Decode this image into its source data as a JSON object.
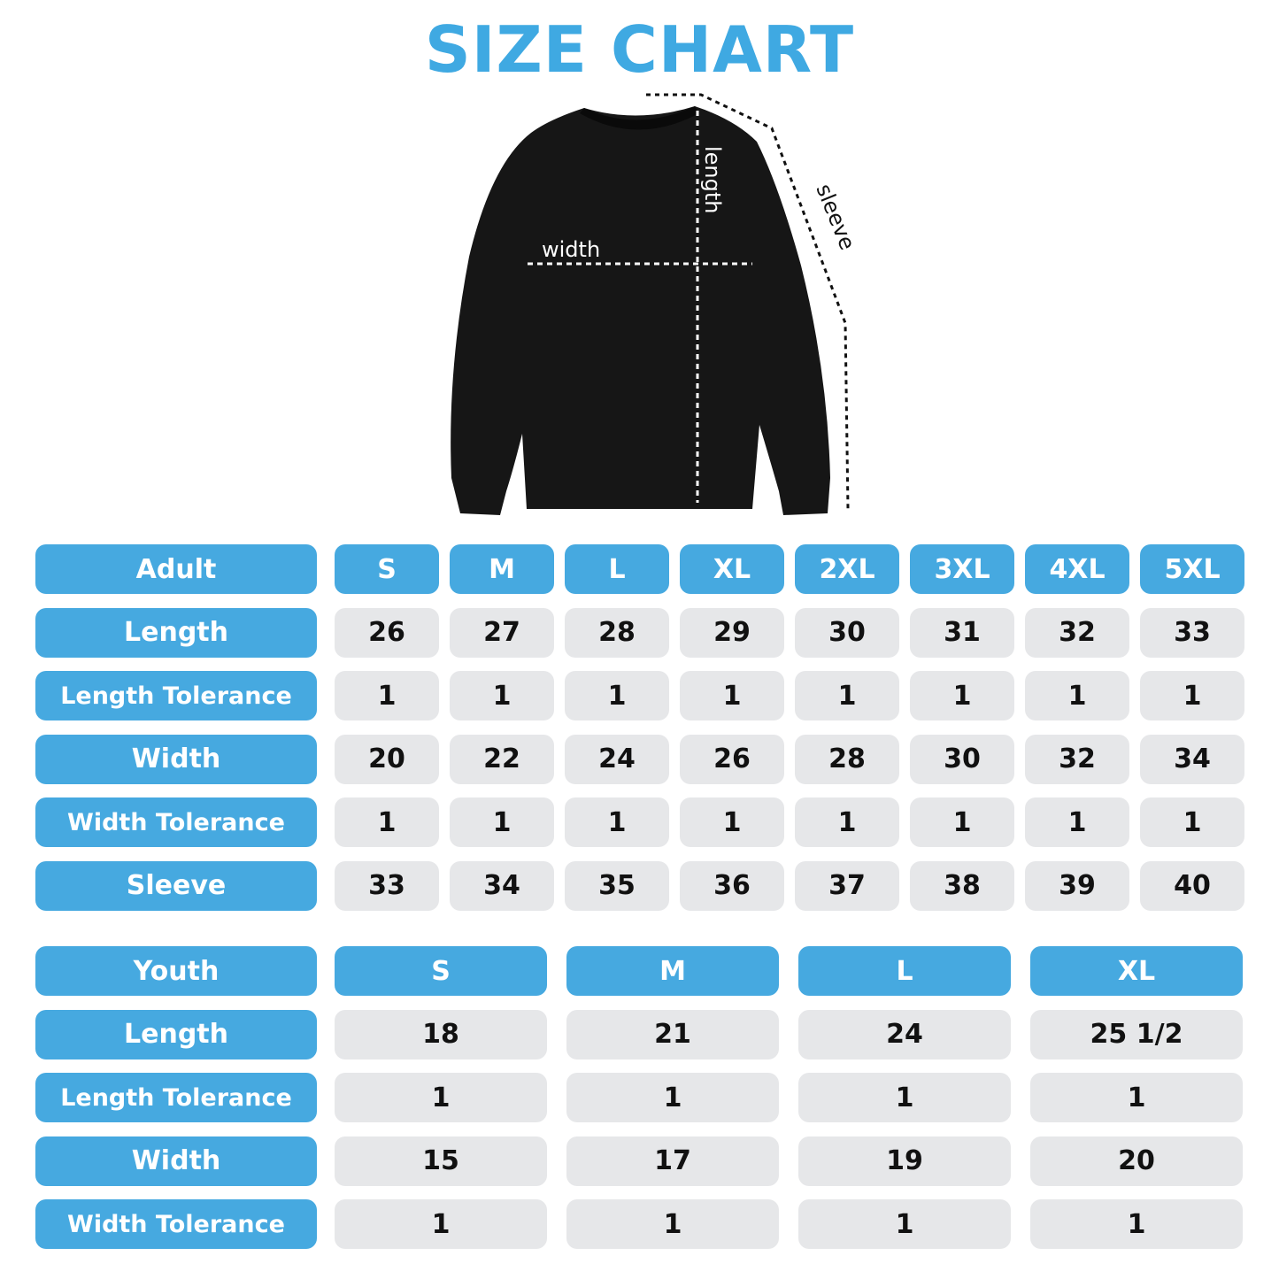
{
  "title": "SIZE CHART",
  "colors": {
    "accent": "#46A9E0",
    "cell_bg": "#E6E7E9",
    "title": "#3FA9E2"
  },
  "diagram": {
    "width_label": "width",
    "length_label": "length",
    "sleeve_label": "sleeve"
  },
  "adult": {
    "header": "Adult",
    "sizes": [
      "S",
      "M",
      "L",
      "XL",
      "2XL",
      "3XL",
      "4XL",
      "5XL"
    ],
    "rows": [
      {
        "label": "Length",
        "values": [
          "26",
          "27",
          "28",
          "29",
          "30",
          "31",
          "32",
          "33"
        ]
      },
      {
        "label": "Length Tolerance",
        "values": [
          "1",
          "1",
          "1",
          "1",
          "1",
          "1",
          "1",
          "1"
        ]
      },
      {
        "label": "Width",
        "values": [
          "20",
          "22",
          "24",
          "26",
          "28",
          "30",
          "32",
          "34"
        ]
      },
      {
        "label": "Width Tolerance",
        "values": [
          "1",
          "1",
          "1",
          "1",
          "1",
          "1",
          "1",
          "1"
        ]
      },
      {
        "label": "Sleeve",
        "values": [
          "33",
          "34",
          "35",
          "36",
          "37",
          "38",
          "39",
          "40"
        ]
      }
    ]
  },
  "youth": {
    "header": "Youth",
    "sizes": [
      "S",
      "M",
      "L",
      "XL"
    ],
    "rows": [
      {
        "label": "Length",
        "values": [
          "18",
          "21",
          "24",
          "25 1/2"
        ]
      },
      {
        "label": "Length Tolerance",
        "values": [
          "1",
          "1",
          "1",
          "1"
        ]
      },
      {
        "label": "Width",
        "values": [
          "15",
          "17",
          "19",
          "20"
        ]
      },
      {
        "label": "Width Tolerance",
        "values": [
          "1",
          "1",
          "1",
          "1"
        ]
      }
    ]
  }
}
